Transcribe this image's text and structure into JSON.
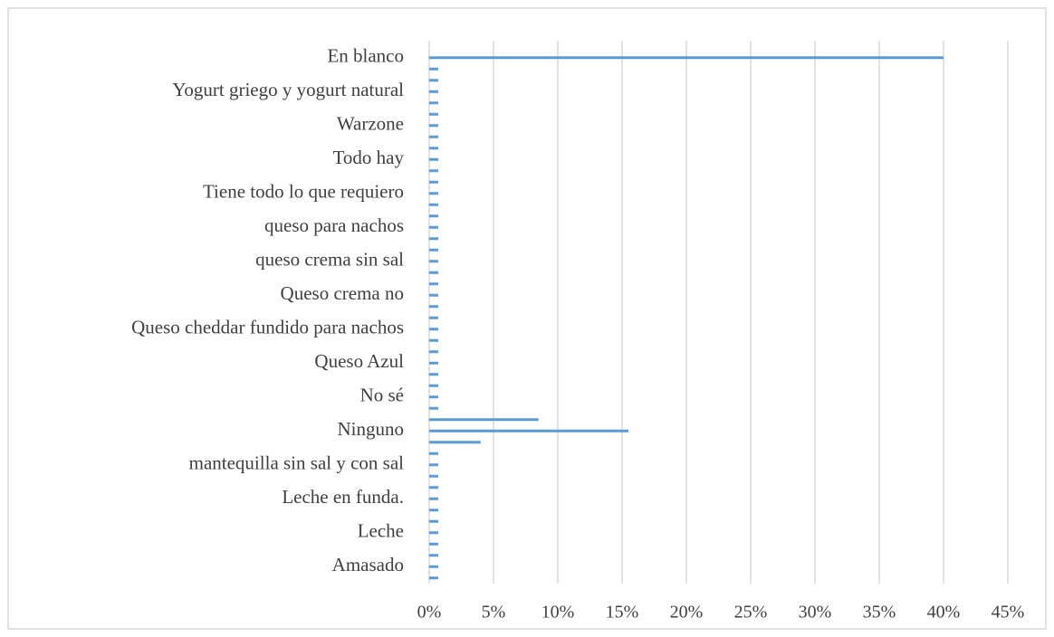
{
  "chart_data": {
    "type": "bar",
    "orientation": "horizontal",
    "color": "#5b9bd5",
    "grid": true,
    "categories": [
      null,
      "En blanco",
      null,
      null,
      "Yogurt griego y yogurt natural",
      null,
      null,
      "Warzone",
      null,
      null,
      "Todo hay",
      null,
      null,
      "Tiene todo lo que requiero",
      null,
      null,
      "queso para nachos",
      null,
      null,
      "queso crema sin sal",
      null,
      null,
      "Queso crema no",
      null,
      null,
      "Queso cheddar fundido para nachos",
      null,
      null,
      "Queso Azul",
      null,
      null,
      "No sé",
      null,
      null,
      "Ninguno",
      null,
      null,
      "mantequilla sin sal y con sal",
      null,
      null,
      "Leche en funda.",
      null,
      null,
      "Leche",
      null,
      null,
      "Amasado",
      null
    ],
    "values": [
      0,
      40,
      0.7,
      0.7,
      0.7,
      0.7,
      0.7,
      0.7,
      0.7,
      0.7,
      0.7,
      0.7,
      0.7,
      0.7,
      0.7,
      0.7,
      0.7,
      0.7,
      0.7,
      0.7,
      0.7,
      0.7,
      0.7,
      0.7,
      0.7,
      0.7,
      0.7,
      0.7,
      0.7,
      0.7,
      0.7,
      0.7,
      0.7,
      8.5,
      15.5,
      4,
      0.7,
      0.7,
      0.7,
      0.7,
      0.7,
      0.7,
      0.7,
      0.7,
      0.7,
      0.7,
      0.7,
      0.7
    ],
    "xlim": [
      0,
      45
    ],
    "xticks": [
      {
        "value": 0,
        "label": "0%"
      },
      {
        "value": 5,
        "label": "5%"
      },
      {
        "value": 10,
        "label": "10%"
      },
      {
        "value": 15,
        "label": "15%"
      },
      {
        "value": 20,
        "label": "20%"
      },
      {
        "value": 25,
        "label": "25%"
      },
      {
        "value": 30,
        "label": "30%"
      },
      {
        "value": 35,
        "label": "35%"
      },
      {
        "value": 40,
        "label": "40%"
      },
      {
        "value": 45,
        "label": "45%"
      }
    ]
  }
}
